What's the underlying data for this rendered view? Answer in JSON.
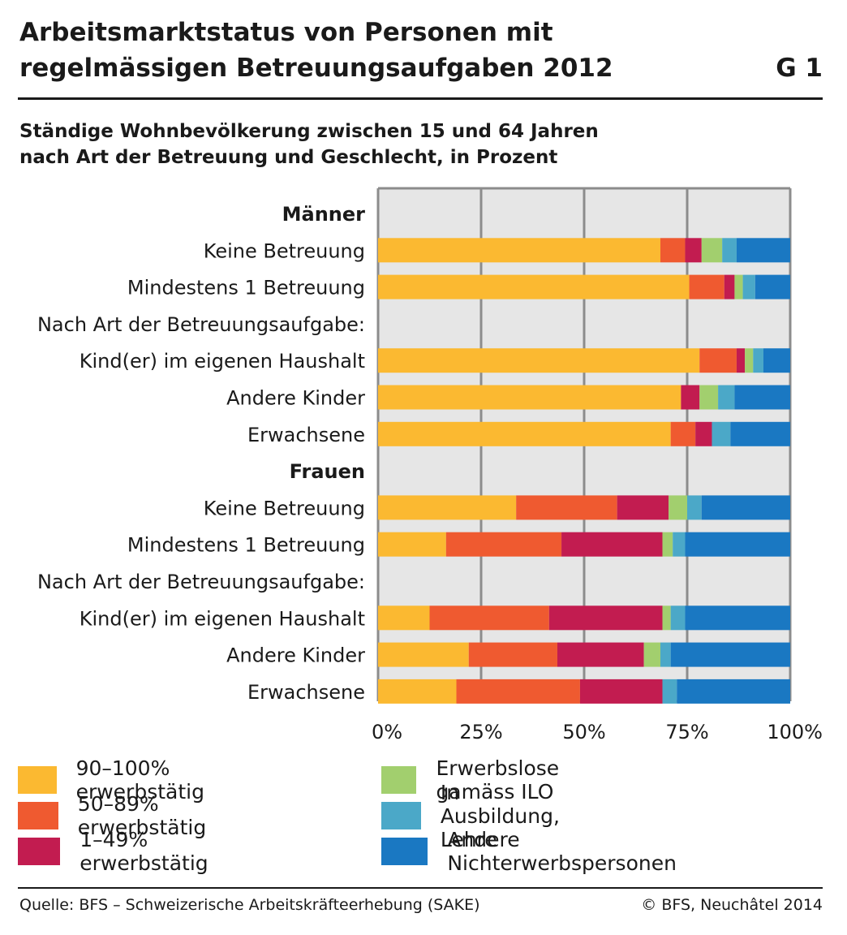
{
  "header": {
    "title": "Arbeitsmarktstatus von Personen mit regelmässigen Betreuungsaufgaben 2012",
    "figure_id": "G 1",
    "subtitle_line1": "Ständige Wohnbevölkerung zwischen 15 und 64 Jahren",
    "subtitle_line2": "nach Art der Betreuung und Geschlecht, in Prozent"
  },
  "chart_data": {
    "type": "bar",
    "orientation": "horizontal",
    "stacked": true,
    "xlim": [
      0,
      100
    ],
    "x_ticks": [
      "0%",
      "25%",
      "50%",
      "75%",
      "100%"
    ],
    "grid": true,
    "groups": [
      {
        "label": "Männer",
        "rows": [
          {
            "label": "Keine Betreuung",
            "values": [
              68.5,
              6.0,
              4.0,
              5.0,
              3.5,
              13.0
            ]
          },
          {
            "label": "Mindestens 1 Betreuung",
            "values": [
              75.5,
              8.5,
              2.5,
              2.0,
              3.0,
              8.5
            ]
          },
          {
            "label": "Nach Art der Betreuungsaufgabe:",
            "values": null
          },
          {
            "label": "Kind(er) im eigenen Haushalt",
            "values": [
              78.0,
              9.0,
              2.0,
              2.0,
              2.5,
              6.5
            ]
          },
          {
            "label": "Andere Kinder",
            "values": [
              73.5,
              0.0,
              4.5,
              4.5,
              4.0,
              13.5
            ]
          },
          {
            "label": "Erwachsene",
            "values": [
              71.0,
              6.0,
              4.0,
              0.0,
              4.5,
              14.5
            ]
          }
        ]
      },
      {
        "label": "Frauen",
        "rows": [
          {
            "label": "Keine Betreuung",
            "values": [
              33.5,
              24.5,
              12.5,
              4.5,
              3.5,
              21.5
            ]
          },
          {
            "label": "Mindestens 1 Betreuung",
            "values": [
              16.5,
              28.0,
              24.5,
              2.5,
              3.0,
              25.5
            ]
          },
          {
            "label": "Nach Art der Betreuungsaufgabe:",
            "values": null
          },
          {
            "label": "Kind(er) im eigenen Haushalt",
            "values": [
              12.5,
              29.0,
              27.5,
              2.0,
              3.5,
              25.5
            ]
          },
          {
            "label": "Andere Kinder",
            "values": [
              22.0,
              21.5,
              21.0,
              4.0,
              2.5,
              29.0
            ]
          },
          {
            "label": "Erwachsene",
            "values": [
              19.0,
              30.0,
              20.0,
              0.0,
              3.5,
              27.5
            ]
          }
        ]
      }
    ],
    "series": [
      {
        "name": "90–100% erwerbstätig",
        "color": "#FBB931"
      },
      {
        "name": "50–89% erwerbstätig",
        "color": "#EF5A30"
      },
      {
        "name": "1–49% erwerbstätig",
        "color": "#C21C50"
      },
      {
        "name": "Erwerbslose gamäss ILO",
        "color": "#A2CF6E"
      },
      {
        "name": "In Ausbildung, Lehre",
        "color": "#4BA8C8"
      },
      {
        "name": "Andere Nichterwerbspersonen",
        "color": "#1A78C2"
      }
    ]
  },
  "footer": {
    "source": "Quelle: BFS – Schweizerische Arbeitskräfteerhebung (SAKE)",
    "copyright": "© BFS, Neuchâtel 2014"
  }
}
